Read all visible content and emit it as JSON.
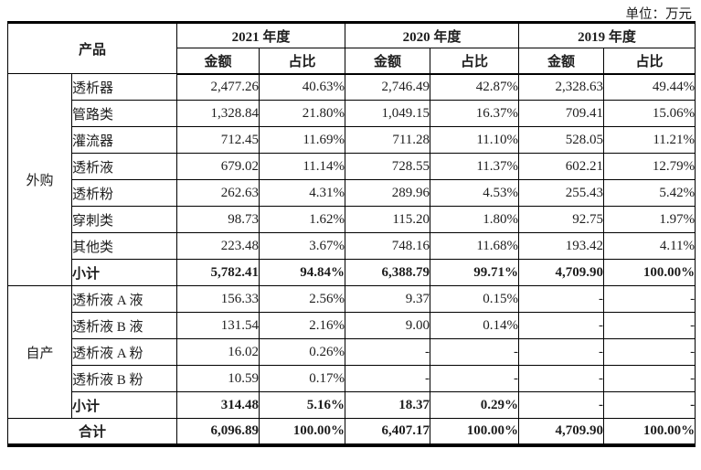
{
  "unit_label": "单位：万元",
  "table": {
    "product_header": "产品",
    "amount_header": "金额",
    "ratio_header": "占比",
    "years": [
      "2021 年度",
      "2020 年度",
      "2019 年度"
    ],
    "groups": [
      {
        "name": "外购",
        "rows": [
          {
            "product": "透析器",
            "values": [
              "2,477.26",
              "40.63%",
              "2,746.49",
              "42.87%",
              "2,328.63",
              "49.44%"
            ]
          },
          {
            "product": "管路类",
            "values": [
              "1,328.84",
              "21.80%",
              "1,049.15",
              "16.37%",
              "709.41",
              "15.06%"
            ]
          },
          {
            "product": "灌流器",
            "values": [
              "712.45",
              "11.69%",
              "711.28",
              "11.10%",
              "528.05",
              "11.21%"
            ]
          },
          {
            "product": "透析液",
            "values": [
              "679.02",
              "11.14%",
              "728.55",
              "11.37%",
              "602.21",
              "12.79%"
            ]
          },
          {
            "product": "透析粉",
            "values": [
              "262.63",
              "4.31%",
              "289.96",
              "4.53%",
              "255.43",
              "5.42%"
            ]
          },
          {
            "product": "穿刺类",
            "values": [
              "98.73",
              "1.62%",
              "115.20",
              "1.80%",
              "92.75",
              "1.97%"
            ]
          },
          {
            "product": "其他类",
            "values": [
              "223.48",
              "3.67%",
              "748.16",
              "11.68%",
              "193.42",
              "4.11%"
            ]
          }
        ],
        "subtotal": {
          "label": "小计",
          "values": [
            "5,782.41",
            "94.84%",
            "6,388.79",
            "99.71%",
            "4,709.90",
            "100.00%"
          ]
        }
      },
      {
        "name": "自产",
        "rows": [
          {
            "product": "透析液 A 液",
            "values": [
              "156.33",
              "2.56%",
              "9.37",
              "0.15%",
              "-",
              "-"
            ]
          },
          {
            "product": "透析液 B 液",
            "values": [
              "131.54",
              "2.16%",
              "9.00",
              "0.14%",
              "-",
              "-"
            ]
          },
          {
            "product": "透析液 A 粉",
            "values": [
              "16.02",
              "0.26%",
              "-",
              "-",
              "-",
              "-"
            ]
          },
          {
            "product": "透析液 B 粉",
            "values": [
              "10.59",
              "0.17%",
              "-",
              "-",
              "-",
              "-"
            ]
          }
        ],
        "subtotal": {
          "label": "小计",
          "values": [
            "314.48",
            "5.16%",
            "18.37",
            "0.29%",
            "-",
            "-"
          ]
        }
      }
    ],
    "total": {
      "label": "合计",
      "values": [
        "6,096.89",
        "100.00%",
        "6,407.17",
        "100.00%",
        "4,709.90",
        "100.00%"
      ]
    }
  }
}
